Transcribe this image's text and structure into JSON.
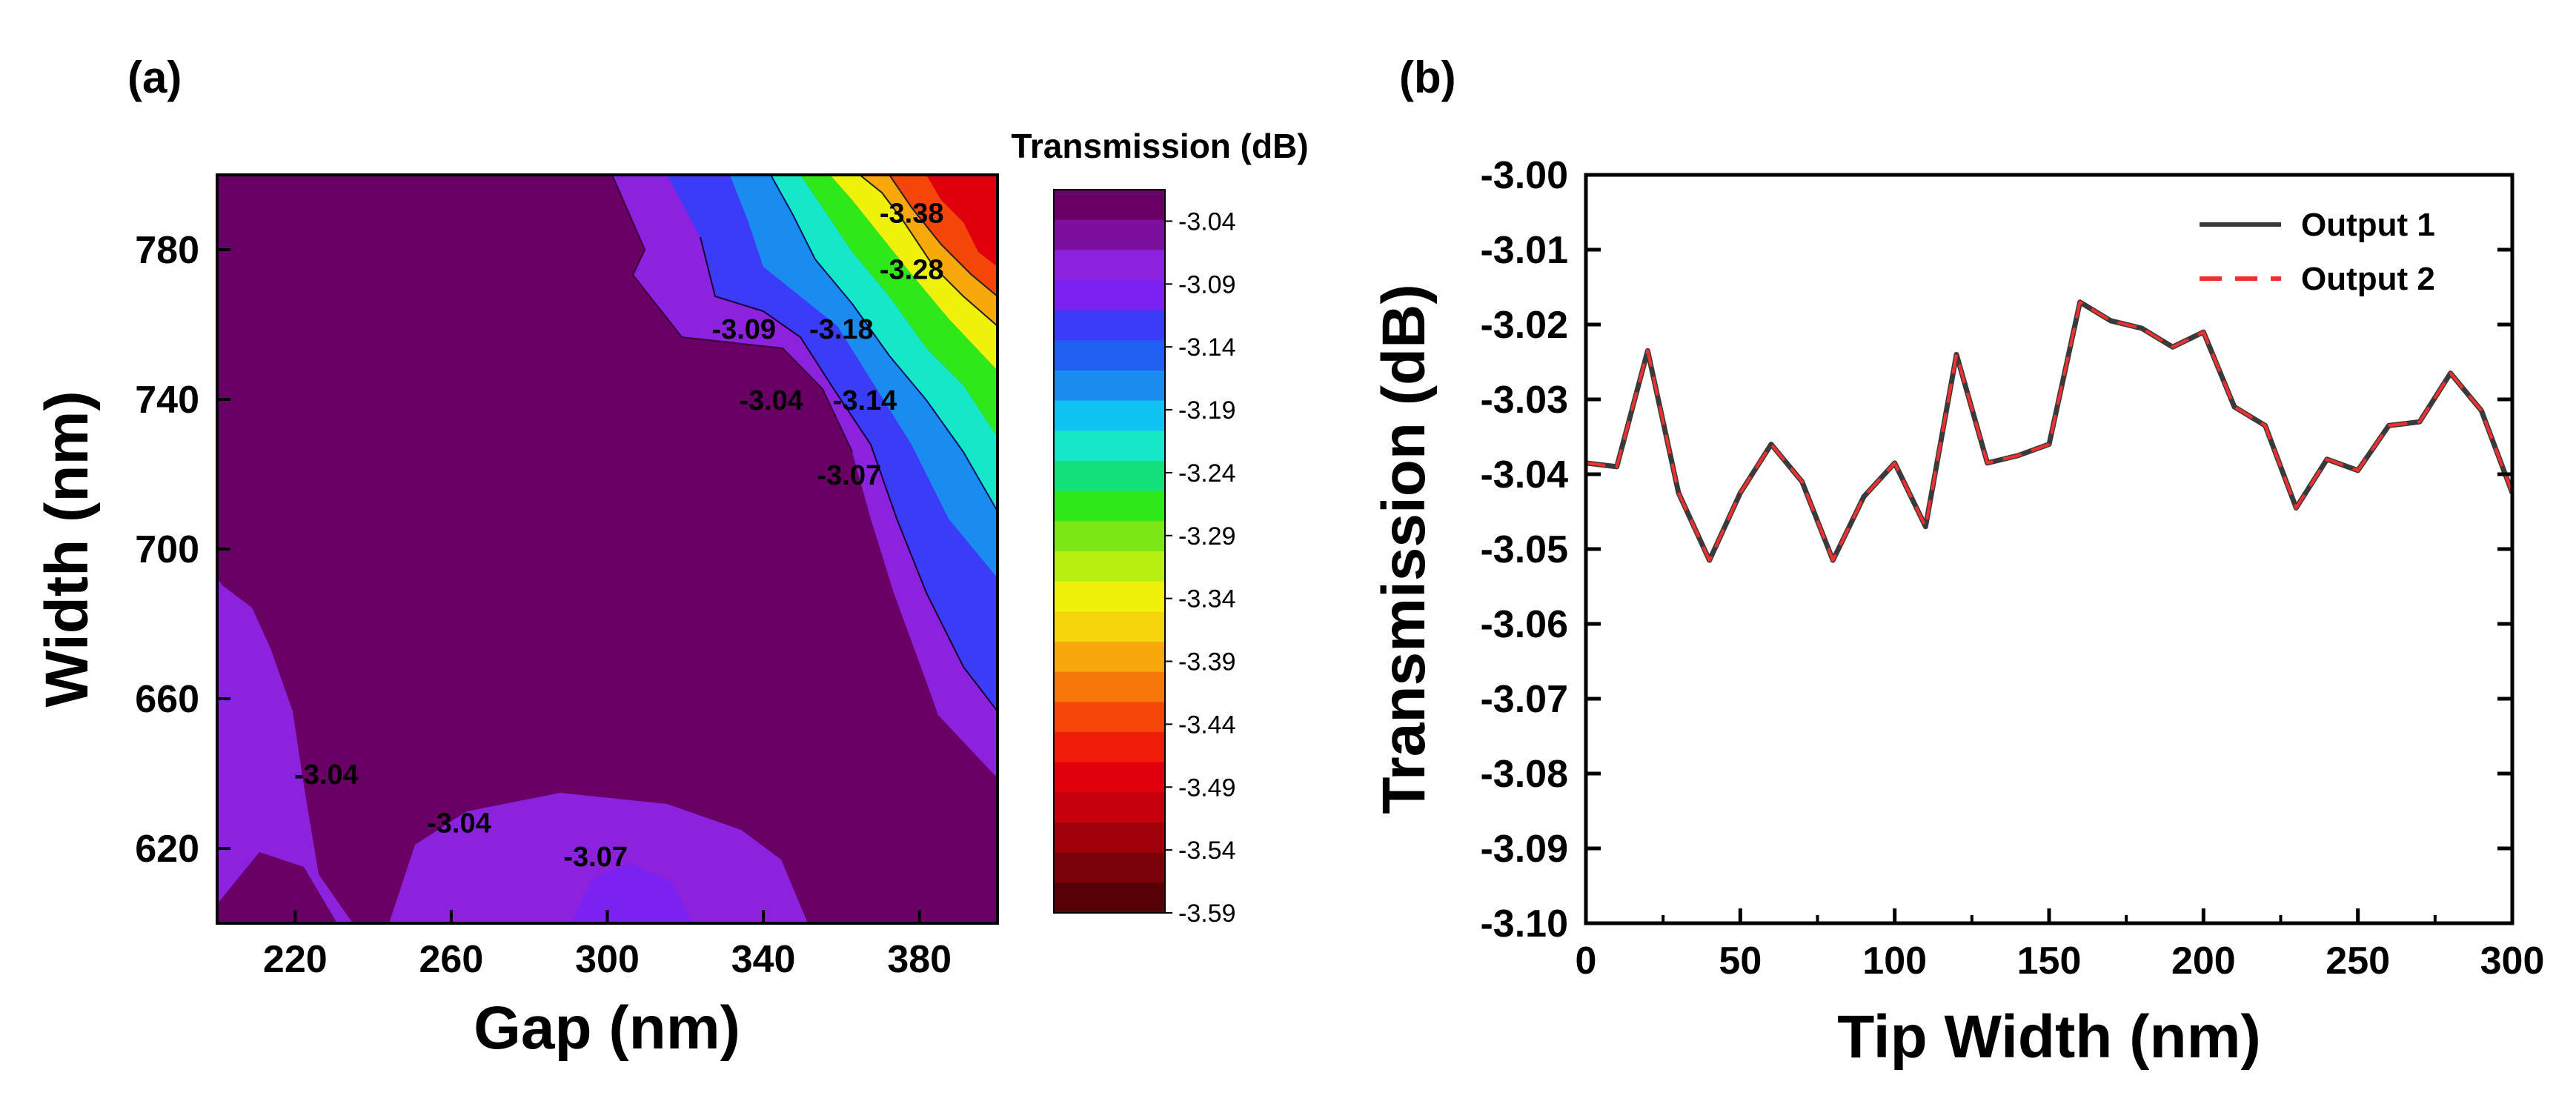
{
  "chart_data": [
    {
      "type": "heatmap",
      "panel_label": "(a)",
      "xlabel": "Gap (nm)",
      "ylabel": "Width (nm)",
      "xlim": [
        200,
        400
      ],
      "ylim": [
        600,
        800
      ],
      "xticks": [
        220,
        260,
        300,
        340,
        380
      ],
      "yticks": [
        620,
        660,
        700,
        740,
        780
      ],
      "colorbar": {
        "title": "Transmission (dB)",
        "range": [
          -3.59,
          -3.015
        ],
        "tick_values": [
          -3.04,
          -3.09,
          -3.14,
          -3.19,
          -3.24,
          -3.29,
          -3.34,
          -3.39,
          -3.44,
          -3.49,
          -3.54,
          -3.59
        ],
        "tick_labels": [
          "-3.04",
          "-3.09",
          "-3.14",
          "-3.19",
          "-3.24",
          "-3.29",
          "-3.34",
          "-3.39",
          "-3.44",
          "-3.49",
          "-3.54",
          "-3.59"
        ],
        "colors": [
          "#6a0066",
          "#7b0f9e",
          "#8c22dd",
          "#7a22f2",
          "#3b3cf7",
          "#1f5ff2",
          "#1a8cf0",
          "#0ec2f2",
          "#14e8c8",
          "#12e07a",
          "#2ee81a",
          "#7ae814",
          "#b8ef10",
          "#eef20a",
          "#f5d60c",
          "#f7a80a",
          "#f7780a",
          "#f5460a",
          "#f01c0a",
          "#e0000a",
          "#c4000a",
          "#a0000a",
          "#7a000a",
          "#560008"
        ]
      },
      "contour_labels": [
        {
          "text": "-3.38",
          "x": 378,
          "y": 790
        },
        {
          "text": "-3.28",
          "x": 378,
          "y": 775
        },
        {
          "text": "-3.09",
          "x": 335,
          "y": 759
        },
        {
          "text": "-3.18",
          "x": 360,
          "y": 759
        },
        {
          "text": "-3.04",
          "x": 342,
          "y": 740
        },
        {
          "text": "-3.14",
          "x": 366,
          "y": 740
        },
        {
          "text": "-3.07",
          "x": 362,
          "y": 720
        },
        {
          "text": "-3.04",
          "x": 228,
          "y": 640
        },
        {
          "text": "-3.04",
          "x": 262,
          "y": 627
        },
        {
          "text": "-3.07",
          "x": 297,
          "y": 618
        }
      ]
    },
    {
      "type": "line",
      "panel_label": "(b)",
      "xlabel": "Tip Width (nm)",
      "ylabel": "Transmission (dB)",
      "xlim": [
        0,
        300
      ],
      "ylim": [
        -3.1,
        -3.0
      ],
      "xticks": [
        0,
        50,
        100,
        150,
        200,
        250,
        300
      ],
      "yticks": [
        -3.0,
        -3.01,
        -3.02,
        -3.03,
        -3.04,
        -3.05,
        -3.06,
        -3.07,
        -3.08,
        -3.09,
        -3.1
      ],
      "ytick_labels": [
        "-3.00",
        "-3.01",
        "-3.02",
        "-3.03",
        "-3.04",
        "-3.05",
        "-3.06",
        "-3.07",
        "-3.08",
        "-3.09",
        "-3.10"
      ],
      "legend_position": "top-right",
      "x": [
        0,
        10,
        20,
        30,
        40,
        50,
        60,
        70,
        80,
        90,
        100,
        110,
        120,
        130,
        140,
        150,
        160,
        170,
        180,
        190,
        200,
        210,
        220,
        230,
        240,
        250,
        260,
        270,
        280,
        290,
        300
      ],
      "series": [
        {
          "name": "Output 1",
          "color": "#3a3a3a",
          "dash": "solid",
          "values": [
            -3.0385,
            -3.039,
            -3.0235,
            -3.0425,
            -3.0515,
            -3.0425,
            -3.036,
            -3.041,
            -3.0515,
            -3.043,
            -3.0385,
            -3.047,
            -3.024,
            -3.0385,
            -3.0375,
            -3.036,
            -3.017,
            -3.0195,
            -3.0205,
            -3.023,
            -3.021,
            -3.031,
            -3.0335,
            -3.0445,
            -3.038,
            -3.0395,
            -3.0335,
            -3.033,
            -3.0265,
            -3.0315,
            -3.0425
          ]
        },
        {
          "name": "Output 2",
          "color": "#f03030",
          "dash": "dashed",
          "values": [
            -3.0385,
            -3.039,
            -3.0235,
            -3.0425,
            -3.0515,
            -3.0425,
            -3.036,
            -3.041,
            -3.0515,
            -3.043,
            -3.0385,
            -3.047,
            -3.024,
            -3.0385,
            -3.0375,
            -3.036,
            -3.017,
            -3.0195,
            -3.0205,
            -3.023,
            -3.021,
            -3.031,
            -3.0335,
            -3.0445,
            -3.038,
            -3.0395,
            -3.0335,
            -3.033,
            -3.0265,
            -3.0315,
            -3.0425
          ]
        }
      ]
    }
  ]
}
